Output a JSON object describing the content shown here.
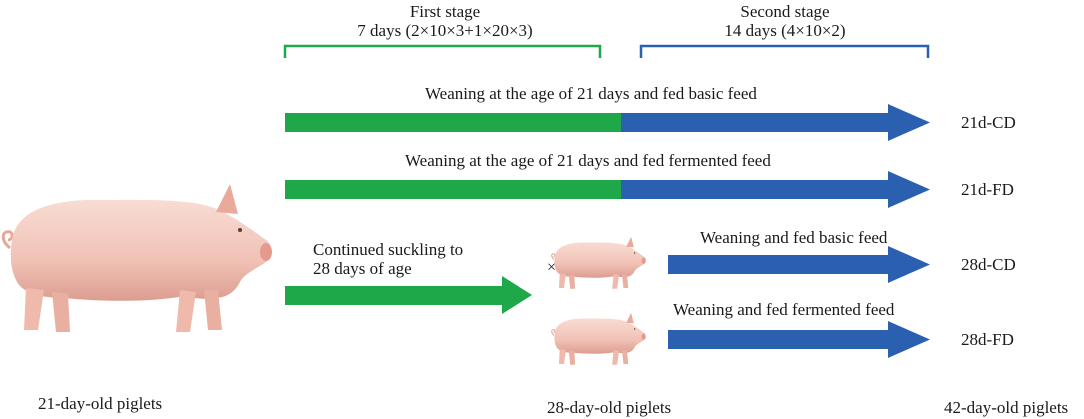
{
  "stages": {
    "first": {
      "title": "First stage",
      "detail": "7 days (2×10×3+1×20×3)",
      "color": "#1fa84a"
    },
    "second": {
      "title": "Second stage",
      "detail": "14 days (4×10×2)",
      "color": "#2b5faf"
    }
  },
  "arrows": [
    {
      "label": "Weaning at the age of 21 days and fed basic feed",
      "group": "21d-CD"
    },
    {
      "label": "Weaning at the age of 21 days and fed fermented feed",
      "group": "21d-FD"
    },
    {
      "label": "Weaning and fed basic feed",
      "group": "28d-CD"
    },
    {
      "label": "Weaning and fed fermented feed",
      "group": "28d-FD"
    }
  ],
  "suckling_label_line1": "Continued suckling to",
  "suckling_label_line2": "28 days of age",
  "cross_mark": "×",
  "bottom_labels": {
    "left": "21-day-old piglets",
    "middle": "28-day-old piglets",
    "right": "42-day-old piglets"
  },
  "colors": {
    "green": "#1fa84a",
    "blue": "#2b5faf",
    "pig_body": "#f3c7bc",
    "pig_shade": "#dd9a8c"
  }
}
